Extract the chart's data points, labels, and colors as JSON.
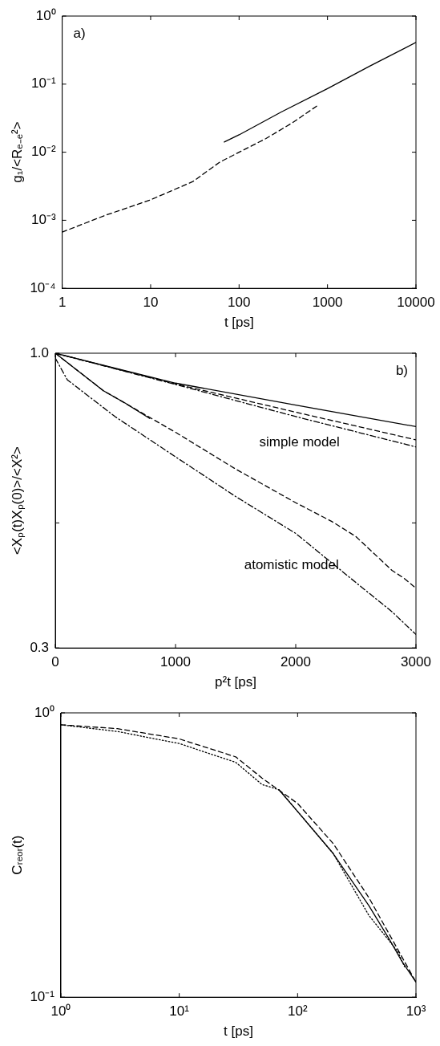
{
  "chart_data": [
    {
      "type": "line",
      "xlabel": "t [ps]",
      "ylabel": "g₁/<Rₑ₋ₑ²>",
      "log": "xy",
      "marker": "none",
      "annotations": [
        "a)"
      ],
      "xlim": [
        1,
        10000
      ],
      "xticks": [
        1,
        10,
        100,
        1000,
        10000
      ],
      "ylim": [
        0.0001,
        1
      ],
      "yticks": [
        {
          "value": 0.0001,
          "label": "10⁻⁴"
        },
        {
          "value": 0.001,
          "label": "10⁻³"
        },
        {
          "value": 0.01,
          "label": "10⁻²"
        },
        {
          "value": 0.1,
          "label": "10⁻¹"
        },
        {
          "value": 1,
          "label": "10⁰"
        }
      ],
      "series": [
        {
          "color": "#000000",
          "line_style": "solid",
          "x": [
            68,
            100,
            300,
            1000,
            3000,
            10000
          ],
          "values": [
            0.0141,
            0.018,
            0.039,
            0.086,
            0.184,
            0.41
          ]
        },
        {
          "color": "#000000",
          "line_style": "dashed",
          "x": [
            1,
            3,
            10,
            30,
            60,
            100,
            200,
            400,
            800
          ],
          "values": [
            0.00067,
            0.00117,
            0.002,
            0.0037,
            0.0071,
            0.01,
            0.0158,
            0.027,
            0.05
          ]
        }
      ]
    },
    {
      "type": "line",
      "xlabel": "p²t [ps]",
      "ylabel": "<Xₚ(t)Xₚ(0)>/<X²>",
      "log": "y",
      "marker": "none",
      "annotations": [
        "b)",
        "simple model",
        "atomistic model"
      ],
      "xlim": [
        0,
        3000
      ],
      "xticks": [
        0,
        1000,
        2000,
        3000
      ],
      "ylim": [
        0.3,
        1.0
      ],
      "yticks": [
        {
          "value": 0.3,
          "label": "0.3"
        },
        {
          "value": 0.5,
          "label": null
        },
        {
          "value": 1.0,
          "label": "1.0"
        }
      ],
      "series": [
        {
          "color": "#000000",
          "line_style": "solid",
          "x": [
            0,
            1000,
            2000,
            3000
          ],
          "values": [
            1.0,
            0.885,
            0.809,
            0.741
          ]
        },
        {
          "color": "#000000",
          "line_style": "dashed",
          "x": [
            0,
            1000,
            2000,
            3000
          ],
          "values": [
            1.0,
            0.882,
            0.786,
            0.702
          ]
        },
        {
          "color": "#000000",
          "line_style": "dashdot",
          "x": [
            0,
            1000,
            2000,
            3000
          ],
          "values": [
            1.0,
            0.88,
            0.772,
            0.682
          ]
        },
        {
          "color": "#000000",
          "line_style": "solid",
          "x": [
            0,
            400,
            580,
            785
          ],
          "values": [
            1.0,
            0.858,
            0.816,
            0.766
          ]
        },
        {
          "color": "#000000",
          "line_style": "dashed",
          "x": [
            0,
            400,
            800,
            1000,
            1500,
            2000,
            2300,
            2500,
            2800,
            2900,
            3000
          ],
          "values": [
            1.0,
            0.858,
            0.766,
            0.724,
            0.623,
            0.543,
            0.503,
            0.473,
            0.412,
            0.399,
            0.383
          ]
        },
        {
          "color": "#000000",
          "line_style": "dashdot",
          "x": [
            0,
            100,
            500,
            1000,
            1500,
            2000,
            2500,
            2800,
            3000
          ],
          "values": [
            0.98,
            0.897,
            0.771,
            0.655,
            0.557,
            0.479,
            0.392,
            0.348,
            0.317
          ]
        }
      ]
    },
    {
      "type": "line",
      "xlabel": "t [ps]",
      "ylabel": "Cᵣₑₒᵣ(t)",
      "log": "xy",
      "marker": "none",
      "xlim": [
        1,
        1000
      ],
      "xticks": [
        {
          "value": 1,
          "label": "10⁰"
        },
        {
          "value": 10,
          "label": "10¹"
        },
        {
          "value": 100,
          "label": "10²"
        },
        {
          "value": 1000,
          "label": "10³"
        }
      ],
      "ylim": [
        0.1,
        1
      ],
      "yticks": [
        {
          "value": 0.1,
          "label": "10⁻¹"
        },
        {
          "value": 1,
          "label": "10⁰"
        }
      ],
      "series": [
        {
          "color": "#000000",
          "line_style": "dashed",
          "x": [
            1,
            3,
            10,
            30,
            50,
            100,
            200,
            400,
            1000
          ],
          "values": [
            0.908,
            0.88,
            0.81,
            0.7,
            0.59,
            0.48,
            0.347,
            0.224,
            0.113
          ]
        },
        {
          "color": "#000000",
          "line_style": "dotted",
          "x": [
            1,
            3,
            10,
            30,
            50,
            70,
            100,
            200,
            400,
            700,
            800
          ],
          "values": [
            0.908,
            0.86,
            0.78,
            0.67,
            0.56,
            0.536,
            0.45,
            0.32,
            0.194,
            0.145,
            0.128
          ]
        },
        {
          "color": "#000000",
          "line_style": "solid",
          "x": [
            70,
            100,
            200,
            400,
            600,
            750,
            1000
          ],
          "values": [
            0.535,
            0.45,
            0.32,
            0.21,
            0.159,
            0.135,
            0.113
          ]
        }
      ]
    }
  ]
}
